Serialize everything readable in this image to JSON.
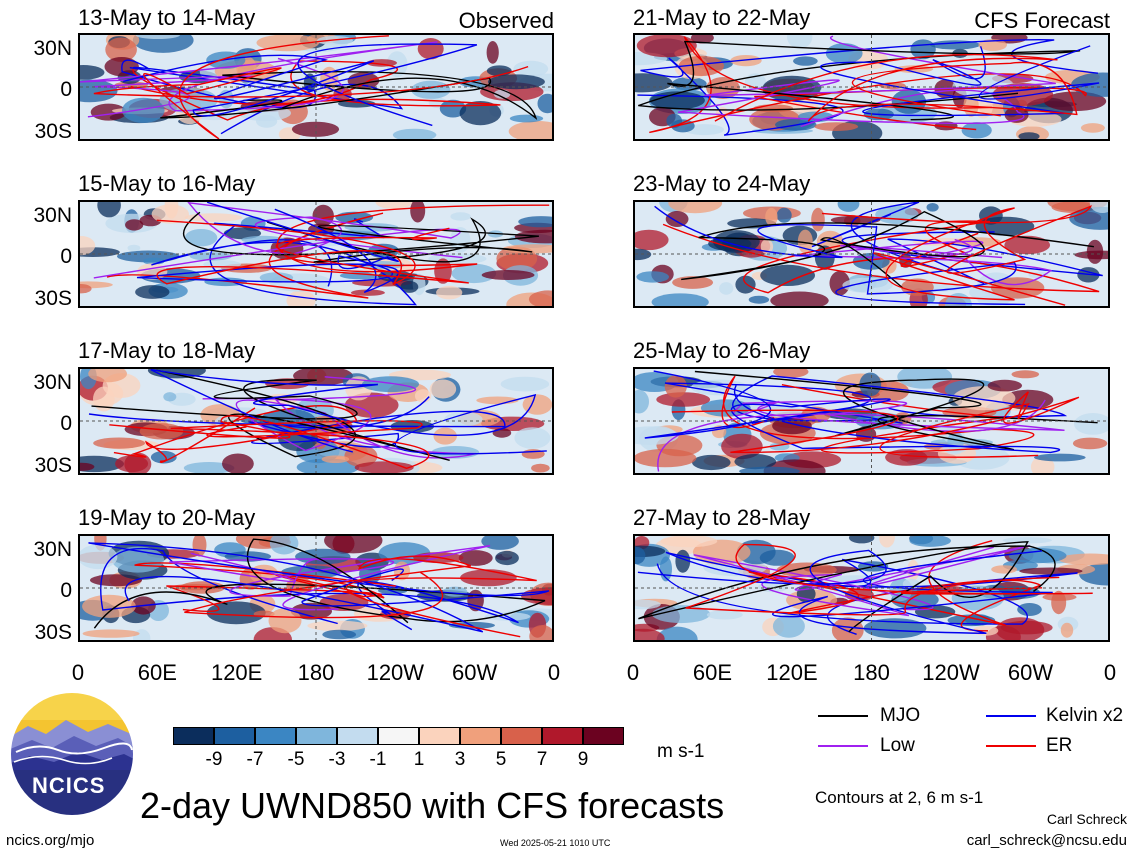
{
  "panels": [
    {
      "title": "13-May to 14-May",
      "tag": "Observed"
    },
    {
      "title": "21-May to 22-May",
      "tag": "CFS Forecast"
    },
    {
      "title": "15-May to 16-May",
      "tag": ""
    },
    {
      "title": "23-May to 24-May",
      "tag": ""
    },
    {
      "title": "17-May to 18-May",
      "tag": ""
    },
    {
      "title": "25-May to 26-May",
      "tag": ""
    },
    {
      "title": "19-May to 20-May",
      "tag": ""
    },
    {
      "title": "27-May to 28-May",
      "tag": ""
    }
  ],
  "lat_labels": [
    "30N",
    "0",
    "30S"
  ],
  "lon_labels": [
    "0",
    "60E",
    "120E",
    "180",
    "120W",
    "60W",
    "0"
  ],
  "colorbar": {
    "ticks": [
      "-9",
      "-7",
      "-5",
      "-3",
      "-1",
      "1",
      "3",
      "5",
      "7",
      "9"
    ],
    "colors": [
      "#0b2d5c",
      "#1d5fa0",
      "#3b86c3",
      "#7fb6dc",
      "#c3dcef",
      "#f6f6f6",
      "#fbd3bd",
      "#f0a07c",
      "#d8614b",
      "#b0182b",
      "#6b0220"
    ],
    "units": "m s-1"
  },
  "legend": [
    {
      "label": "MJO",
      "color": "#000000"
    },
    {
      "label": "Kelvin x2",
      "color": "#0000ee"
    },
    {
      "label": "Low",
      "color": "#a020f0"
    },
    {
      "label": "ER",
      "color": "#ee0000"
    }
  ],
  "main_title": "2-day UWND850 with CFS forecasts",
  "contour_note": "Contours at 2, 6 m s-1",
  "author": "Carl Schreck",
  "email": "carl_schreck@ncsu.edu",
  "site_url": "ncics.org/mjo",
  "timestamp": "Wed 2025-05-21 1010 UTC",
  "logo_text": "NCICS"
}
